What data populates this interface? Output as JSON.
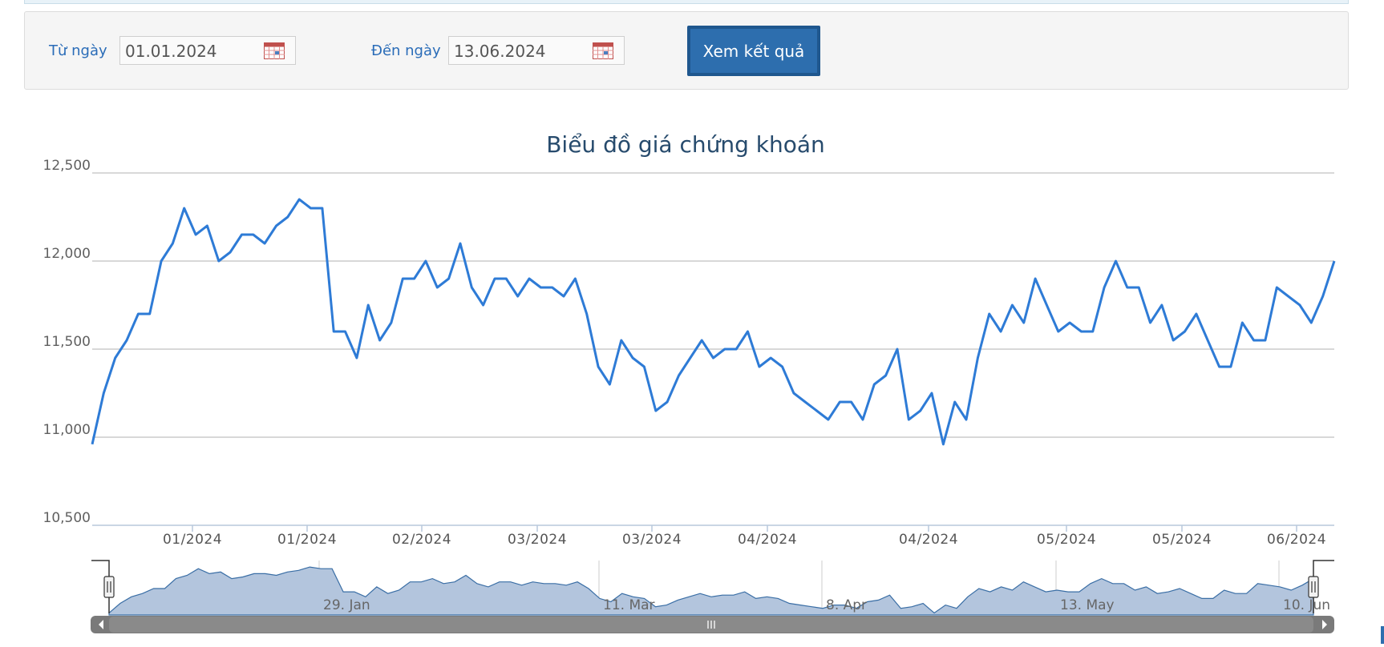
{
  "filter": {
    "from_label": "Từ ngày",
    "from_value": "01.01.2024",
    "to_label": "Đến ngày",
    "to_value": "13.06.2024",
    "submit_label": "Xem kết quả"
  },
  "colors": {
    "line": "#2e7bd6",
    "navigator_fill": "#b3c5dd",
    "button": "#2d6eae"
  },
  "chart_data": {
    "type": "line",
    "title": "Biểu đồ giá chứng khoán",
    "ylim": [
      10500,
      12500
    ],
    "y_ticks": [
      "12,500",
      "12,000",
      "11,500",
      "11,000",
      "10,500"
    ],
    "x_ticks": [
      "01/2024",
      "01/2024",
      "02/2024",
      "03/2024",
      "03/2024",
      "04/2024",
      "04/2024",
      "05/2024",
      "05/2024",
      "06/2024"
    ],
    "grid": true,
    "legend": "none",
    "series": [
      {
        "values": [
          10960,
          11250,
          11450,
          11550,
          11700,
          11700,
          12000,
          12100,
          12300,
          12150,
          12200,
          12000,
          12050,
          12150,
          12150,
          12100,
          12200,
          12250,
          12350,
          12300,
          12300,
          11600,
          11600,
          11450,
          11750,
          11550,
          11650,
          11900,
          11900,
          12000,
          11850,
          11900,
          12100,
          11850,
          11750,
          11900,
          11900,
          11800,
          11900,
          11850,
          11850,
          11800,
          11900,
          11700,
          11400,
          11300,
          11550,
          11450,
          11400,
          11150,
          11200,
          11350,
          11450,
          11550,
          11450,
          11500,
          11500,
          11600,
          11400,
          11450,
          11400,
          11250,
          11200,
          11150,
          11100,
          11200,
          11200,
          11100,
          11300,
          11350,
          11500,
          11100,
          11150,
          11250,
          10960,
          11200,
          11100,
          11450,
          11700,
          11600,
          11750,
          11650,
          11900,
          11750,
          11600,
          11650,
          11600,
          11600,
          11850,
          12000,
          11850,
          11850,
          11650,
          11750,
          11550,
          11600,
          11700,
          11550,
          11400,
          11400,
          11650,
          11550,
          11550,
          11850,
          11800,
          11750,
          11650,
          11800,
          12000
        ]
      }
    ],
    "navigator": {
      "labels": [
        "29. Jan",
        "11. Mar",
        "8. Apr",
        "13. May",
        "10. Jun"
      ]
    }
  }
}
